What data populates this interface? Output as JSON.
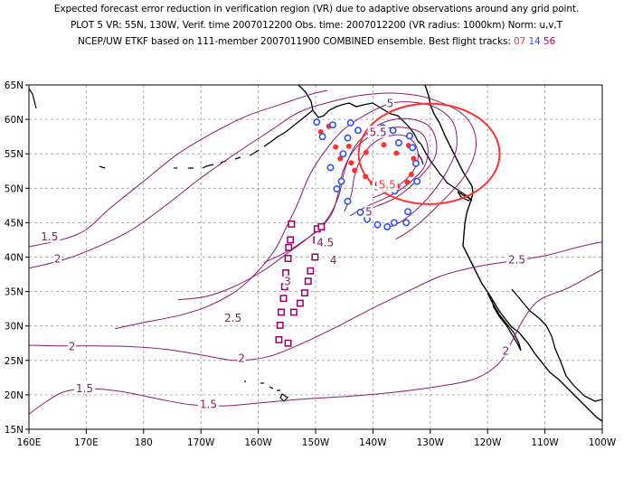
{
  "header": {
    "line1": "Expected forecast error reduction in verification region (VR) due to adaptive observations around any grid point.",
    "line2": "PLOT 5 VR: 55N, 130W, Verif. time 2007012200 Obs. time: 2007012200 (VR radius: 1000km) Norm: u,v,T",
    "line3_prefix": "NCEP/UW ETKF based on 111-member 2007011900 COMBINED ensemble.  Best flight tracks:",
    "track_a": "07",
    "track_b": "14",
    "track_c": "56"
  },
  "map": {
    "lon_range": [
      160,
      260
    ],
    "lat_range": [
      15,
      65
    ],
    "x_ticks": [
      "160E",
      "170E",
      "180",
      "170W",
      "160W",
      "150W",
      "140W",
      "130W",
      "120W",
      "110W",
      "100W"
    ],
    "y_ticks": [
      "15N",
      "20N",
      "25N",
      "30N",
      "35N",
      "40N",
      "45N",
      "50N",
      "55N",
      "60N",
      "65N"
    ],
    "grid": "dashed",
    "colors": {
      "contour": "#8b1a6b",
      "vr_circle": "#ff3030",
      "track_07": "#ff3030",
      "track_14": "#3050ff",
      "track_56": "#990066",
      "coast": "#000000"
    },
    "contour_labels": [
      {
        "text": "1.5",
        "lon": 163.6,
        "lat": 42.8
      },
      {
        "text": "2",
        "lon": 165.0,
        "lat": 39.6
      },
      {
        "text": "2",
        "lon": 167.5,
        "lat": 26.9
      },
      {
        "text": "1.5",
        "lon": 169.7,
        "lat": 20.8
      },
      {
        "text": "1.5",
        "lon": 191.3,
        "lat": 18.5
      },
      {
        "text": "2",
        "lon": 197.1,
        "lat": 25.2
      },
      {
        "text": "2.5",
        "lon": 195.6,
        "lat": 31.0
      },
      {
        "text": "3",
        "lon": 205.1,
        "lat": 36.3
      },
      {
        "text": "4",
        "lon": 213.1,
        "lat": 39.4
      },
      {
        "text": "4.5",
        "lon": 211.7,
        "lat": 42.0
      },
      {
        "text": "5",
        "lon": 219.3,
        "lat": 46.4
      },
      {
        "text": "5.5",
        "lon": 221.7,
        "lat": 50.1
      },
      {
        "text": "5.5",
        "lon": 220.9,
        "lat": 58.0
      },
      {
        "text": "5",
        "lon": 223.0,
        "lat": 62.2
      },
      {
        "text": "2.5",
        "lon": 245.1,
        "lat": 39.5
      },
      {
        "text": "2",
        "lon": 243.2,
        "lat": 26.2
      }
    ],
    "vr_circle_labels": [
      {
        "text": "5.5",
        "lon": 222.5,
        "lat": 50.4
      }
    ],
    "contours": [
      [
        [
          160,
          41.5
        ],
        [
          166,
          42.6
        ],
        [
          170,
          44.0
        ],
        [
          174,
          47.0
        ],
        [
          180,
          51.0
        ],
        [
          186,
          55.0
        ],
        [
          192,
          58.0
        ],
        [
          198,
          60.5
        ],
        [
          204,
          62.2
        ],
        [
          209,
          63.6
        ],
        [
          212,
          64.2
        ]
      ],
      [
        [
          160,
          38.4
        ],
        [
          166,
          39.6
        ],
        [
          172,
          41.5
        ],
        [
          178,
          44.0
        ],
        [
          184,
          47.6
        ],
        [
          190,
          51.5
        ],
        [
          196,
          55.0
        ],
        [
          202,
          58.3
        ],
        [
          207,
          61.0
        ],
        [
          212,
          62.4
        ],
        [
          218,
          63.5
        ],
        [
          224,
          63.8
        ],
        [
          230,
          63.0
        ],
        [
          236,
          60.5
        ],
        [
          238,
          56.5
        ],
        [
          236,
          51.8
        ],
        [
          231,
          47.2
        ],
        [
          227,
          44.2
        ],
        [
          224,
          42.6
        ]
      ],
      [
        [
          175,
          29.6
        ],
        [
          180,
          30.5
        ],
        [
          186,
          31.5
        ],
        [
          191,
          32.8
        ],
        [
          196,
          35.0
        ],
        [
          200,
          38.0
        ],
        [
          203,
          41.2
        ],
        [
          205,
          44.5
        ],
        [
          207,
          48.0
        ],
        [
          209,
          52.0
        ],
        [
          212,
          55.8
        ],
        [
          215,
          58.6
        ],
        [
          219,
          60.8
        ],
        [
          223,
          62.3
        ],
        [
          227,
          62.5
        ],
        [
          231,
          61.7
        ],
        [
          234,
          59.5
        ],
        [
          234.6,
          56.0
        ],
        [
          233,
          52.6
        ],
        [
          230.5,
          49.5
        ],
        [
          228,
          47.2
        ],
        [
          225,
          45.2
        ],
        [
          222,
          44.0
        ]
      ],
      [
        [
          186,
          33.8
        ],
        [
          191,
          34.3
        ],
        [
          196,
          35.8
        ],
        [
          201,
          38.1
        ],
        [
          205,
          40.5
        ],
        [
          209,
          43.0
        ],
        [
          212,
          45.5
        ],
        [
          214,
          48.8
        ],
        [
          215,
          52.4
        ],
        [
          216.5,
          55.6
        ],
        [
          219,
          58.0
        ],
        [
          222,
          59.6
        ],
        [
          226,
          60.1
        ],
        [
          229.5,
          59.2
        ],
        [
          231,
          57.0
        ],
        [
          230.8,
          54.5
        ],
        [
          229,
          52.4
        ],
        [
          226.5,
          50.2
        ],
        [
          223.5,
          48.4
        ],
        [
          220,
          47.2
        ]
      ],
      [
        [
          201,
          39.2
        ],
        [
          205,
          40.8
        ],
        [
          208,
          42.4
        ],
        [
          211,
          44.3
        ],
        [
          213,
          46.6
        ],
        [
          214,
          49.5
        ],
        [
          214.8,
          52.5
        ],
        [
          216.5,
          55.3
        ],
        [
          219,
          57.3
        ],
        [
          222,
          58.6
        ],
        [
          225.6,
          58.8
        ],
        [
          228.6,
          57.9
        ],
        [
          229.6,
          55.6
        ],
        [
          229,
          53.2
        ],
        [
          227.2,
          51.4
        ],
        [
          224.8,
          49.8
        ],
        [
          222,
          48.5
        ],
        [
          219,
          47.4
        ],
        [
          216,
          46.0
        ]
      ],
      [
        [
          215,
          46.6
        ],
        [
          216.2,
          49.0
        ],
        [
          216.8,
          51.8
        ],
        [
          218,
          54.4
        ],
        [
          220,
          56.5
        ],
        [
          222.8,
          57.6
        ],
        [
          225.6,
          57.6
        ],
        [
          227.5,
          56.2
        ],
        [
          227.8,
          54.0
        ],
        [
          226.6,
          52.0
        ],
        [
          224.6,
          50.5
        ],
        [
          222.2,
          49.4
        ],
        [
          220,
          48.6
        ]
      ],
      [
        [
          160,
          27.2
        ],
        [
          166,
          27.1
        ],
        [
          172,
          27.1
        ],
        [
          178,
          27.0
        ],
        [
          184,
          26.6
        ],
        [
          190,
          25.8
        ],
        [
          196,
          25.0
        ],
        [
          202,
          25.6
        ],
        [
          208,
          27.6
        ],
        [
          214,
          30.0
        ],
        [
          220,
          32.6
        ],
        [
          226,
          35.0
        ],
        [
          232,
          37.3
        ],
        [
          238,
          38.6
        ],
        [
          244,
          39.4
        ],
        [
          250,
          40.2
        ],
        [
          256,
          41.5
        ],
        [
          260,
          42.2
        ]
      ],
      [
        [
          160,
          17.2
        ],
        [
          163,
          19.0
        ],
        [
          166,
          20.4
        ],
        [
          170,
          20.9
        ],
        [
          176,
          20.5
        ],
        [
          182,
          19.5
        ],
        [
          188,
          18.6
        ],
        [
          194,
          18.4
        ],
        [
          200,
          18.8
        ],
        [
          208,
          19.4
        ],
        [
          216,
          19.8
        ],
        [
          224,
          20.4
        ],
        [
          232,
          21.3
        ],
        [
          238,
          22.4
        ],
        [
          242,
          24.6
        ],
        [
          244,
          27.4
        ],
        [
          246,
          30.6
        ],
        [
          248,
          33.0
        ],
        [
          250,
          34.2
        ],
        [
          254,
          35.5
        ],
        [
          258,
          37.3
        ],
        [
          260,
          38.2
        ]
      ]
    ],
    "vr_circle": {
      "lon": 229.8,
      "lat": 55.0,
      "rx_deg": 12.3,
      "ry_deg": 7.3
    },
    "track_07": [
      [
        210.9,
        58.2
      ],
      [
        212.3,
        59.0
      ],
      [
        213.5,
        56.0
      ],
      [
        214.3,
        54.3
      ],
      [
        216.2,
        53.7
      ],
      [
        215.8,
        56.1
      ],
      [
        218.8,
        55.2
      ],
      [
        221.9,
        56.3
      ],
      [
        224.1,
        55.1
      ],
      [
        226.2,
        56.2
      ],
      [
        227.1,
        54.3
      ],
      [
        226.7,
        52.0
      ],
      [
        224.3,
        50.3
      ],
      [
        221.8,
        50.1
      ],
      [
        219.9,
        50.8
      ],
      [
        218.7,
        51.7
      ],
      [
        216.8,
        52.6
      ],
      [
        226.0,
        50.9
      ]
    ],
    "track_14": [
      [
        210.2,
        59.6
      ],
      [
        211.2,
        57.5
      ],
      [
        213.0,
        59.2
      ],
      [
        214.8,
        55.0
      ],
      [
        215.6,
        57.3
      ],
      [
        216.1,
        59.5
      ],
      [
        217.4,
        58.4
      ],
      [
        219.6,
        57.9
      ],
      [
        221.7,
        58.8
      ],
      [
        223.5,
        58.4
      ],
      [
        224.5,
        56.6
      ],
      [
        226.4,
        57.6
      ],
      [
        226.9,
        55.9
      ],
      [
        227.5,
        53.6
      ],
      [
        227.7,
        51.0
      ],
      [
        214.5,
        51.0
      ],
      [
        212.6,
        53.0
      ],
      [
        215.6,
        48.1
      ],
      [
        217.8,
        46.5
      ],
      [
        219.0,
        45.5
      ],
      [
        220.8,
        44.7
      ],
      [
        222.5,
        44.4
      ],
      [
        223.7,
        45.0
      ],
      [
        225.8,
        45.0
      ],
      [
        226.1,
        46.6
      ],
      [
        223.8,
        49.6
      ],
      [
        213.7,
        49.9
      ]
    ],
    "track_56": [
      [
        205.8,
        44.8
      ],
      [
        205.6,
        42.5
      ],
      [
        205.3,
        41.4
      ],
      [
        205.2,
        39.8
      ],
      [
        204.8,
        37.7
      ],
      [
        204.6,
        35.7
      ],
      [
        204.4,
        34.0
      ],
      [
        204.0,
        32.0
      ],
      [
        203.8,
        30.1
      ],
      [
        203.6,
        28.0
      ],
      [
        205.2,
        27.5
      ],
      [
        206.2,
        32.0
      ],
      [
        207.3,
        33.3
      ],
      [
        208.1,
        34.8
      ],
      [
        208.7,
        36.5
      ],
      [
        209.1,
        38.0
      ],
      [
        209.9,
        40.0
      ],
      [
        210.2,
        42.5
      ],
      [
        210.3,
        44.1
      ],
      [
        211.0,
        44.4
      ]
    ]
  }
}
